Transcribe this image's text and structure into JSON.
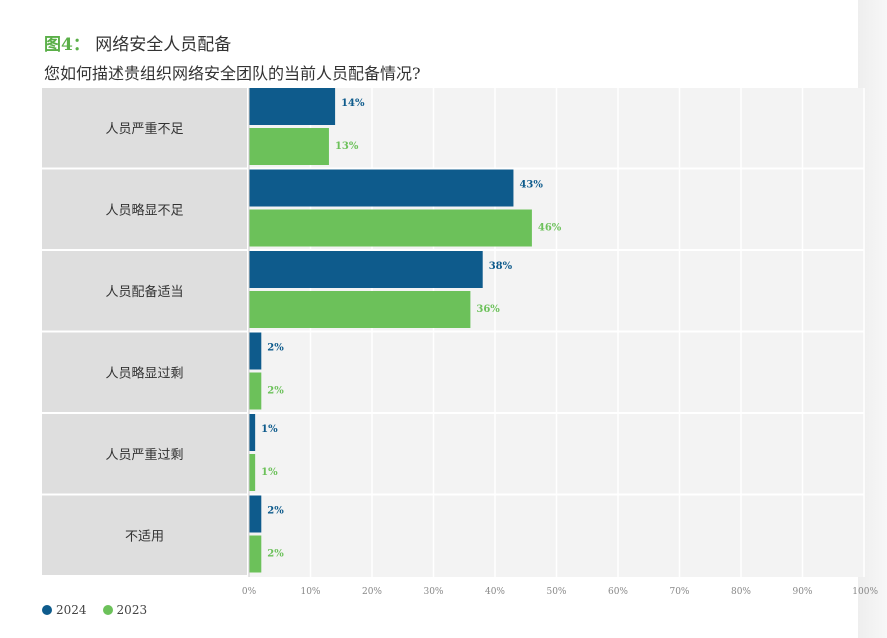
{
  "figure": {
    "label": "图4",
    "separator": "：",
    "title": "网络安全人员配备",
    "question": "您如何描述贵组织网络安全团队的当前人员配备情况?"
  },
  "chart_data": {
    "type": "bar",
    "orientation": "horizontal",
    "categories": [
      "人员严重不足",
      "人员略显不足",
      "人员配备适当",
      "人员略显过剩",
      "人员严重过剩",
      "不适用"
    ],
    "series": [
      {
        "name": "2024",
        "color": "#0e5b8c",
        "values": [
          14,
          43,
          38,
          2,
          1,
          2
        ]
      },
      {
        "name": "2023",
        "color": "#6cc15a",
        "values": [
          13,
          46,
          36,
          2,
          1,
          2
        ]
      }
    ],
    "value_format": "{v}%",
    "xlim": [
      0,
      100
    ],
    "x_ticks": [
      "0%",
      "10%",
      "20%",
      "30%",
      "40%",
      "50%",
      "60%",
      "70%",
      "80%",
      "90%",
      "100%"
    ],
    "grid": true,
    "legend": "bottom-left"
  },
  "legend": [
    {
      "label": "2024",
      "color": "#0e5b8c"
    },
    {
      "label": "2023",
      "color": "#6cc15a"
    }
  ]
}
